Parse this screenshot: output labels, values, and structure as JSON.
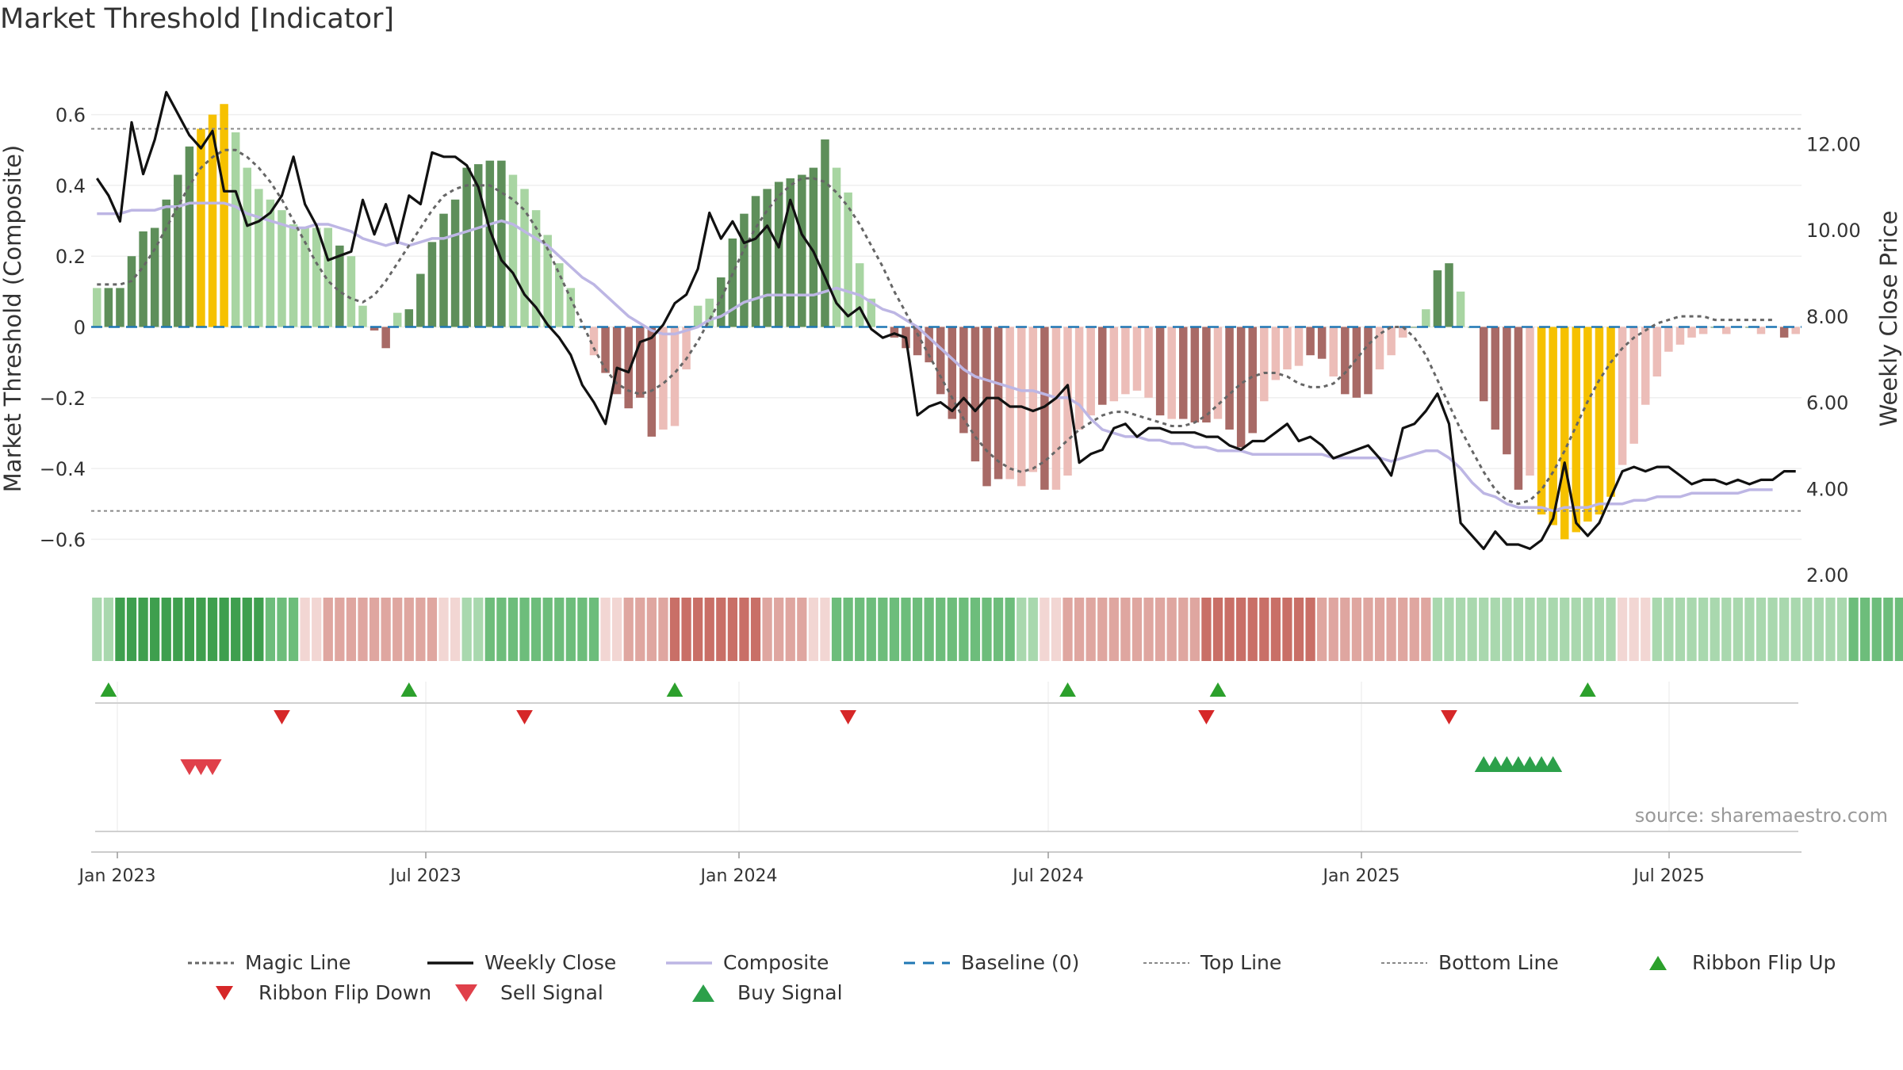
{
  "title": "Market Threshold [Indicator]",
  "source": "source: sharemaestro.com",
  "chart_data": {
    "type": "bar",
    "ylabel_left": "Market Threshold (Composite)",
    "ylabel_right": "Weekly Close Price",
    "left_ylim": [
      -0.7,
      0.7
    ],
    "left_ticks": [
      0.6,
      0.4,
      0.2,
      0,
      -0.2,
      -0.4,
      -0.6
    ],
    "left_tick_labels": [
      "0.6",
      "0.4",
      "0.2",
      "0",
      "−0.2",
      "−0.4",
      "−0.6"
    ],
    "right_ylim": [
      2.0,
      13.5
    ],
    "right_ticks": [
      12,
      10,
      8,
      6,
      4,
      2
    ],
    "right_tick_labels": [
      "12.00",
      "10.00",
      "8.00",
      "6.00",
      "4.00",
      "2.00"
    ],
    "top_line": 0.56,
    "bottom_line": -0.52,
    "x_ticks": [
      "Jan 2023",
      "Jul 2023",
      "Jan 2024",
      "Jul 2024",
      "Jan 2025",
      "Jul 2025"
    ],
    "grid": true,
    "legend_position": "bottom",
    "colors": {
      "strong_up": "#5e8f5a",
      "weak_up": "#a8d5a2",
      "strong_down": "#a86a66",
      "weak_down": "#ecbdb8",
      "extreme": "#f6c100",
      "close": "#111111",
      "composite": "#bdb6e4",
      "magic": "#666666",
      "baseline": "#1f77b4",
      "thresholds": "#888888",
      "flip_up": "#2ca02c",
      "flip_down": "#d62728",
      "sell": "#e0404a",
      "buy": "#2ca04a"
    },
    "bars": [
      0.11,
      0.11,
      0.11,
      0.2,
      0.27,
      0.28,
      0.36,
      0.43,
      0.51,
      0.56,
      0.6,
      0.63,
      0.55,
      0.45,
      0.39,
      0.36,
      0.33,
      0.29,
      0.28,
      0.28,
      0.28,
      0.23,
      0.2,
      0.06,
      -0.01,
      -0.06,
      0.04,
      0.05,
      0.15,
      0.24,
      0.32,
      0.36,
      0.45,
      0.46,
      0.47,
      0.47,
      0.43,
      0.39,
      0.33,
      0.26,
      0.18,
      0.11,
      0.0,
      -0.08,
      -0.13,
      -0.19,
      -0.23,
      -0.2,
      -0.31,
      -0.29,
      -0.28,
      -0.12,
      0.06,
      0.08,
      0.14,
      0.25,
      0.32,
      0.37,
      0.39,
      0.41,
      0.42,
      0.43,
      0.45,
      0.53,
      0.45,
      0.38,
      0.18,
      0.08,
      0.0,
      -0.03,
      -0.06,
      -0.08,
      -0.1,
      -0.19,
      -0.26,
      -0.3,
      -0.38,
      -0.45,
      -0.43,
      -0.43,
      -0.45,
      -0.41,
      -0.46,
      -0.46,
      -0.42,
      -0.29,
      -0.25,
      -0.22,
      -0.21,
      -0.19,
      -0.18,
      -0.2,
      -0.25,
      -0.26,
      -0.26,
      -0.27,
      -0.27,
      -0.26,
      -0.29,
      -0.34,
      -0.3,
      -0.21,
      -0.15,
      -0.12,
      -0.11,
      -0.08,
      -0.09,
      -0.14,
      -0.19,
      -0.2,
      -0.19,
      -0.12,
      -0.08,
      -0.03,
      0.0,
      0.05,
      0.16,
      0.18,
      0.1,
      0.0,
      -0.21,
      -0.29,
      -0.36,
      -0.46,
      -0.42,
      -0.53,
      -0.56,
      -0.6,
      -0.58,
      -0.55,
      -0.53,
      -0.48,
      -0.39,
      -0.33,
      -0.22,
      -0.14,
      -0.07,
      -0.05,
      -0.03,
      -0.02,
      0.0,
      -0.02,
      0.0,
      0.0,
      -0.02,
      0.0,
      -0.03,
      -0.02
    ],
    "bar_colors": [
      "w",
      "s",
      "s",
      "s",
      "s",
      "s",
      "s",
      "s",
      "s",
      "x",
      "x",
      "x",
      "w",
      "w",
      "w",
      "w",
      "w",
      "w",
      "w",
      "w",
      "w",
      "s",
      "w",
      "w",
      "sd",
      "sd",
      "w",
      "s",
      "s",
      "s",
      "s",
      "s",
      "s",
      "s",
      "s",
      "s",
      "w",
      "w",
      "w",
      "w",
      "w",
      "w",
      "s",
      "wd",
      "sd",
      "sd",
      "sd",
      "sd",
      "sd",
      "wd",
      "wd",
      "wd",
      "w",
      "w",
      "s",
      "s",
      "s",
      "s",
      "s",
      "s",
      "s",
      "s",
      "s",
      "s",
      "w",
      "w",
      "w",
      "w",
      "s",
      "sd",
      "sd",
      "sd",
      "sd",
      "sd",
      "sd",
      "sd",
      "sd",
      "sd",
      "sd",
      "wd",
      "wd",
      "wd",
      "sd",
      "wd",
      "wd",
      "wd",
      "wd",
      "sd",
      "wd",
      "wd",
      "wd",
      "wd",
      "sd",
      "wd",
      "sd",
      "sd",
      "sd",
      "wd",
      "sd",
      "sd",
      "sd",
      "wd",
      "wd",
      "wd",
      "wd",
      "sd",
      "sd",
      "wd",
      "sd",
      "sd",
      "sd",
      "wd",
      "wd",
      "wd",
      "s",
      "w",
      "s",
      "s",
      "w",
      "s",
      "sd",
      "sd",
      "sd",
      "sd",
      "wd",
      "x",
      "x",
      "x",
      "x",
      "x",
      "x",
      "x",
      "wd",
      "wd",
      "wd",
      "wd",
      "wd",
      "wd",
      "wd",
      "wd",
      "s",
      "wd",
      "s",
      "s",
      "wd",
      "s",
      "sd",
      "wd"
    ],
    "weekly_close": [
      11.2,
      10.8,
      10.2,
      12.5,
      11.3,
      12.1,
      13.2,
      12.7,
      12.2,
      11.9,
      12.3,
      10.9,
      10.9,
      10.1,
      10.2,
      10.4,
      10.8,
      11.7,
      10.6,
      10.1,
      9.3,
      9.4,
      9.5,
      10.7,
      9.9,
      10.6,
      9.7,
      10.8,
      10.6,
      11.8,
      11.7,
      11.7,
      11.5,
      11.0,
      10.0,
      9.3,
      9.0,
      8.5,
      8.2,
      7.8,
      7.5,
      7.1,
      6.4,
      6.0,
      5.5,
      6.8,
      6.7,
      7.4,
      7.5,
      7.8,
      8.3,
      8.5,
      9.1,
      10.4,
      9.8,
      10.2,
      9.7,
      9.8,
      10.1,
      9.6,
      10.7,
      9.9,
      9.5,
      8.9,
      8.3,
      8.0,
      8.2,
      7.7,
      7.5,
      7.6,
      7.5,
      5.7,
      5.9,
      6.0,
      5.8,
      6.1,
      5.8,
      6.1,
      6.1,
      5.9,
      5.9,
      5.8,
      5.9,
      6.1,
      6.4,
      4.6,
      4.8,
      4.9,
      5.4,
      5.5,
      5.2,
      5.4,
      5.4,
      5.3,
      5.3,
      5.3,
      5.2,
      5.2,
      5.0,
      4.9,
      5.1,
      5.1,
      5.3,
      5.5,
      5.1,
      5.2,
      5.0,
      4.7,
      4.8,
      4.9,
      5.0,
      4.7,
      4.3,
      5.4,
      5.5,
      5.8,
      6.2,
      5.5,
      3.2,
      2.9,
      2.6,
      3.0,
      2.7,
      2.7,
      2.6,
      2.8,
      3.3,
      4.6,
      3.2,
      2.9,
      3.2,
      3.8,
      4.4,
      4.5,
      4.4,
      4.5,
      4.5,
      4.3,
      4.1,
      4.2,
      4.2,
      4.1,
      4.2,
      4.1,
      4.2,
      4.2,
      4.4,
      4.4
    ],
    "composite": [
      0.32,
      0.32,
      0.32,
      0.33,
      0.33,
      0.33,
      0.34,
      0.34,
      0.35,
      0.35,
      0.35,
      0.35,
      0.34,
      0.32,
      0.31,
      0.3,
      0.29,
      0.28,
      0.28,
      0.29,
      0.29,
      0.28,
      0.27,
      0.25,
      0.24,
      0.23,
      0.24,
      0.23,
      0.24,
      0.25,
      0.25,
      0.26,
      0.27,
      0.28,
      0.29,
      0.3,
      0.29,
      0.27,
      0.25,
      0.23,
      0.2,
      0.17,
      0.14,
      0.12,
      0.09,
      0.06,
      0.03,
      0.01,
      -0.01,
      -0.02,
      -0.02,
      -0.01,
      0.0,
      0.02,
      0.03,
      0.05,
      0.07,
      0.08,
      0.09,
      0.09,
      0.09,
      0.09,
      0.09,
      0.1,
      0.11,
      0.1,
      0.09,
      0.07,
      0.05,
      0.04,
      0.02,
      0.0,
      -0.03,
      -0.06,
      -0.09,
      -0.12,
      -0.14,
      -0.15,
      -0.16,
      -0.17,
      -0.18,
      -0.18,
      -0.19,
      -0.2,
      -0.2,
      -0.22,
      -0.26,
      -0.29,
      -0.3,
      -0.31,
      -0.31,
      -0.32,
      -0.32,
      -0.33,
      -0.33,
      -0.34,
      -0.34,
      -0.35,
      -0.35,
      -0.35,
      -0.36,
      -0.36,
      -0.36,
      -0.36,
      -0.36,
      -0.36,
      -0.36,
      -0.37,
      -0.37,
      -0.37,
      -0.37,
      -0.37,
      -0.38,
      -0.37,
      -0.36,
      -0.35,
      -0.35,
      -0.37,
      -0.4,
      -0.44,
      -0.47,
      -0.48,
      -0.5,
      -0.51,
      -0.51,
      -0.51,
      -0.52,
      -0.51,
      -0.51,
      -0.51,
      -0.5,
      -0.5,
      -0.5,
      -0.49,
      -0.49,
      -0.48,
      -0.48,
      -0.48,
      -0.47,
      -0.47,
      -0.47,
      -0.47,
      -0.47,
      -0.46,
      -0.46,
      -0.46
    ],
    "magic_line": [
      0.12,
      0.12,
      0.12,
      0.13,
      0.17,
      0.22,
      0.28,
      0.34,
      0.4,
      0.45,
      0.48,
      0.5,
      0.5,
      0.48,
      0.45,
      0.41,
      0.36,
      0.3,
      0.24,
      0.18,
      0.13,
      0.1,
      0.08,
      0.07,
      0.09,
      0.13,
      0.18,
      0.23,
      0.28,
      0.33,
      0.37,
      0.39,
      0.4,
      0.4,
      0.4,
      0.38,
      0.36,
      0.33,
      0.28,
      0.22,
      0.15,
      0.08,
      0.01,
      -0.06,
      -0.12,
      -0.16,
      -0.18,
      -0.19,
      -0.18,
      -0.16,
      -0.13,
      -0.09,
      -0.04,
      0.02,
      0.08,
      0.15,
      0.22,
      0.28,
      0.33,
      0.37,
      0.4,
      0.42,
      0.42,
      0.41,
      0.38,
      0.34,
      0.29,
      0.23,
      0.17,
      0.1,
      0.04,
      -0.02,
      -0.08,
      -0.14,
      -0.2,
      -0.26,
      -0.31,
      -0.35,
      -0.38,
      -0.4,
      -0.41,
      -0.4,
      -0.38,
      -0.35,
      -0.32,
      -0.29,
      -0.27,
      -0.25,
      -0.24,
      -0.24,
      -0.25,
      -0.26,
      -0.27,
      -0.28,
      -0.28,
      -0.27,
      -0.25,
      -0.22,
      -0.19,
      -0.16,
      -0.14,
      -0.13,
      -0.13,
      -0.14,
      -0.16,
      -0.17,
      -0.17,
      -0.16,
      -0.13,
      -0.09,
      -0.05,
      -0.02,
      0.0,
      0.0,
      -0.03,
      -0.08,
      -0.15,
      -0.22,
      -0.29,
      -0.35,
      -0.41,
      -0.46,
      -0.49,
      -0.5,
      -0.49,
      -0.46,
      -0.41,
      -0.35,
      -0.28,
      -0.21,
      -0.15,
      -0.1,
      -0.06,
      -0.03,
      -0.01,
      0.01,
      0.02,
      0.03,
      0.03,
      0.03,
      0.02,
      0.02,
      0.02,
      0.02,
      0.02,
      0.02
    ],
    "ribbon": [
      1,
      1,
      3,
      3,
      3,
      3,
      3,
      3,
      3,
      3,
      3,
      3,
      3,
      3,
      3,
      2,
      2,
      2,
      -1,
      -1,
      -2,
      -2,
      -2,
      -2,
      -2,
      -2,
      -2,
      -2,
      -2,
      -2,
      -1,
      -1,
      1,
      1,
      2,
      2,
      2,
      2,
      2,
      2,
      2,
      2,
      2,
      2,
      -1,
      -1,
      -2,
      -2,
      -2,
      -2,
      -3,
      -3,
      -3,
      -3,
      -3,
      -3,
      -3,
      -3,
      -2,
      -2,
      -2,
      -2,
      -1,
      -1,
      2,
      2,
      2,
      2,
      2,
      2,
      2,
      2,
      2,
      2,
      2,
      2,
      2,
      2,
      2,
      2,
      1,
      1,
      -1,
      -1,
      -2,
      -2,
      -2,
      -2,
      -2,
      -2,
      -2,
      -2,
      -2,
      -2,
      -2,
      -2,
      -3,
      -3,
      -3,
      -3,
      -3,
      -3,
      -3,
      -3,
      -3,
      -3,
      -2,
      -2,
      -2,
      -2,
      -2,
      -2,
      -2,
      -2,
      -2,
      -2,
      1,
      1,
      1,
      1,
      1,
      1,
      1,
      1,
      1,
      1,
      1,
      1,
      1,
      1,
      1,
      1,
      -1,
      -1,
      -1,
      1,
      1,
      1,
      1,
      1,
      1,
      1,
      1,
      1,
      1,
      1,
      1,
      1,
      1,
      1,
      1,
      1,
      2,
      2,
      2,
      2,
      2,
      2,
      2,
      2,
      -2,
      -2
    ],
    "ribbon_flip_up": [
      1,
      27,
      50,
      84,
      97,
      129
    ],
    "ribbon_flip_down": [
      16,
      37,
      65,
      96,
      117
    ],
    "sell_signals": [
      8,
      9,
      10
    ],
    "buy_signals": [
      120,
      121,
      122,
      123,
      124,
      125,
      126
    ]
  },
  "legend": {
    "items": [
      {
        "label": "Magic Line",
        "kind": "magic"
      },
      {
        "label": "Weekly Close",
        "kind": "close"
      },
      {
        "label": "Composite",
        "kind": "composite"
      },
      {
        "label": "Baseline (0)",
        "kind": "baseline"
      },
      {
        "label": "Top Line",
        "kind": "top"
      },
      {
        "label": "Bottom Line",
        "kind": "bottom"
      },
      {
        "label": "Ribbon Flip Up",
        "kind": "flipup"
      },
      {
        "label": "Ribbon Flip Down",
        "kind": "flipdown"
      },
      {
        "label": "Sell Signal",
        "kind": "sell"
      },
      {
        "label": "Buy Signal",
        "kind": "buy"
      }
    ]
  }
}
